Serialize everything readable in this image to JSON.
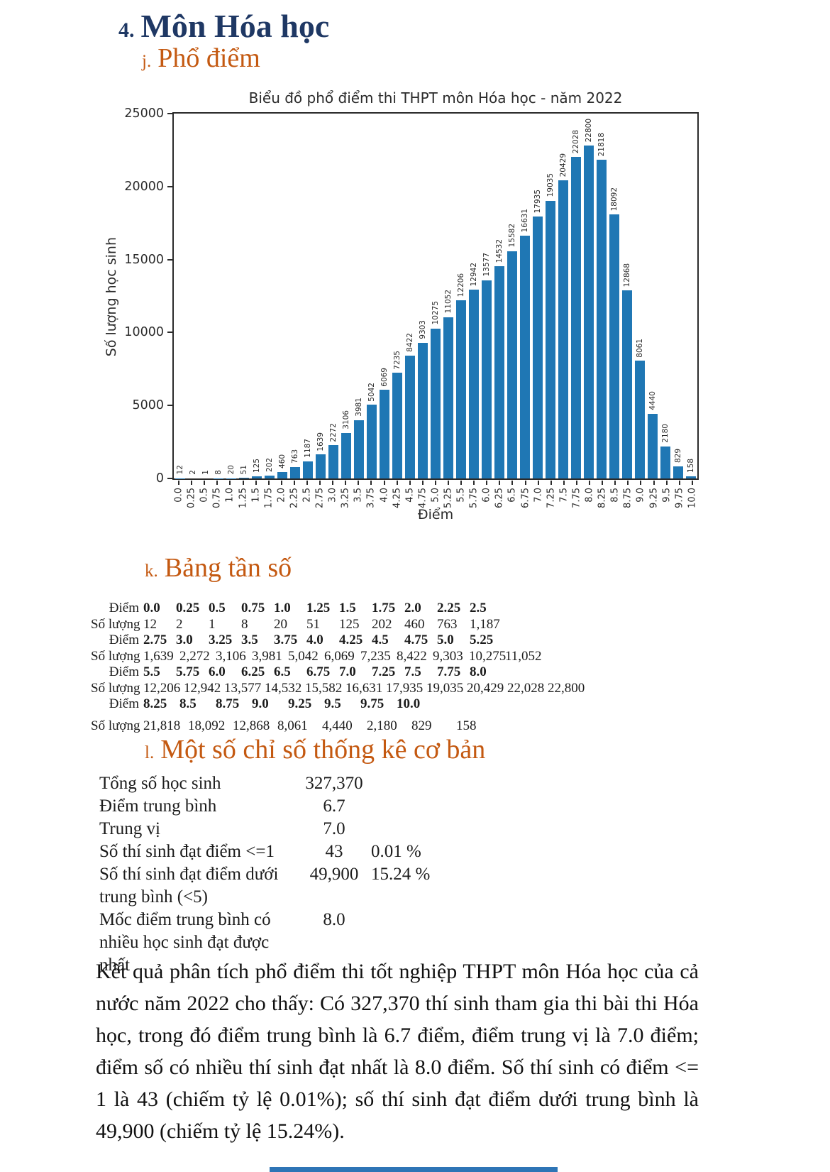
{
  "headings": {
    "main": {
      "num": "4.",
      "text": "Môn Hóa học"
    },
    "j": {
      "num": "j.",
      "text": "Phổ điểm"
    },
    "k": {
      "num": "k.",
      "text": "Bảng tần số"
    },
    "l": {
      "num": "l.",
      "text": "Một số chỉ số thống kê cơ bản"
    }
  },
  "chart_data": {
    "type": "bar",
    "title": "Biểu đồ phổ điểm thi THPT môn Hóa học - năm 2022",
    "xlabel": "Điểm",
    "ylabel": "Số lượng học sinh",
    "ylim": [
      0,
      25000
    ],
    "yticks": [
      0,
      5000,
      10000,
      15000,
      20000,
      25000
    ],
    "grid": false,
    "legend": "none",
    "bar_color": "#1f77b4",
    "bar_label_rotation": 90,
    "categories": [
      "0.0",
      "0.25",
      "0.5",
      "0.75",
      "1.0",
      "1.25",
      "1.5",
      "1.75",
      "2.0",
      "2.25",
      "2.5",
      "2.75",
      "3.0",
      "3.25",
      "3.5",
      "3.75",
      "4.0",
      "4.25",
      "4.5",
      "4.75",
      "5.0",
      "5.25",
      "5.5",
      "5.75",
      "6.0",
      "6.25",
      "6.5",
      "6.75",
      "7.0",
      "7.25",
      "7.5",
      "7.75",
      "8.0",
      "8.25",
      "8.5",
      "8.75",
      "9.0",
      "9.25",
      "9.5",
      "9.75",
      "10.0"
    ],
    "values": [
      12,
      2,
      1,
      8,
      20,
      51,
      125,
      202,
      460,
      763,
      1187,
      1639,
      2272,
      3106,
      3981,
      5042,
      6069,
      7235,
      8422,
      9303,
      10275,
      11052,
      12206,
      12942,
      13577,
      14532,
      15582,
      16631,
      17935,
      19035,
      20429,
      22028,
      22800,
      21818,
      18092,
      12868,
      8061,
      4440,
      2180,
      829,
      158
    ]
  },
  "freq_table": {
    "rows": [
      {
        "label": "Điểm",
        "bold": true,
        "cells": [
          "0.0",
          "0.25",
          "0.5",
          "0.75",
          "1.0",
          "1.25",
          "1.5",
          "1.75",
          "2.0",
          "2.25",
          "2.5"
        ]
      },
      {
        "label": "Số lượng",
        "bold": false,
        "cells": [
          "12",
          "2",
          "1",
          "8",
          "20",
          "51",
          "125",
          "202",
          "460",
          "763",
          "1,187"
        ]
      },
      {
        "label": "Điểm",
        "bold": true,
        "cells": [
          "2.75",
          "3.0",
          "3.25",
          "3.5",
          "3.75",
          "4.0",
          "4.25",
          "4.5",
          "4.75",
          "5.0",
          "5.25"
        ]
      },
      {
        "label": "Số lượng",
        "bold": false,
        "cells": [
          "1,639",
          "2,272",
          "3,106",
          "3,981",
          "5,042",
          "6,069",
          "7,235",
          "8,422",
          "9,303",
          "10,275",
          "11,052"
        ]
      },
      {
        "label": "Điểm",
        "bold": true,
        "cells": [
          "5.5",
          "5.75",
          "6.0",
          "6.25",
          "6.5",
          "6.75",
          "7.0",
          "7.25",
          "7.5",
          "7.75",
          "8.0"
        ]
      },
      {
        "label": "Số lượng",
        "bold": false,
        "cells": [
          "12,206",
          "12,942",
          "13,577",
          "14,532",
          "15,582",
          "16,631",
          "17,935",
          "19,035",
          "20,429",
          "22,028",
          "22,800"
        ]
      },
      {
        "label": "Điểm",
        "bold": true,
        "cells": [
          "8.25",
          "8.5",
          "8.75",
          "9.0",
          "9.25",
          "9.5",
          "9.75",
          "10.0"
        ]
      },
      {
        "label": "Số lượng",
        "bold": false,
        "cells": [
          "21,818",
          "18,092",
          "12,868",
          "8,061",
          "4,440",
          "2,180",
          "829",
          "158"
        ]
      }
    ]
  },
  "stats": {
    "rows": [
      {
        "label": "Tổng số học sinh",
        "value": "327,370",
        "pct": ""
      },
      {
        "label": "Điểm trung bình",
        "value": "6.7",
        "pct": ""
      },
      {
        "label": "Trung vị",
        "value": "7.0",
        "pct": ""
      },
      {
        "label": "Số thí sinh đạt điểm <=1",
        "value": "43",
        "pct": "0.01 %"
      },
      {
        "label": "Số thí sinh đạt điểm dưới trung bình (<5)",
        "value": "49,900",
        "pct": "15.24 %"
      },
      {
        "label": "Mốc điểm trung bình có nhiều học sinh đạt được nhất",
        "value": "8.0",
        "pct": ""
      }
    ]
  },
  "paragraph": "Kết quả phân tích phổ điểm thi tốt nghiệp THPT môn Hóa học của cả nước năm 2022 cho thấy: Có 327,370 thí sinh tham gia thi bài thi Hóa học, trong đó điểm trung bình là 6.7 điểm, điểm trung vị là 7.0 điểm; điểm số có nhiều thí sinh đạt nhất là 8.0 điểm. Số thí sinh có điểm <= 1 là 43 (chiếm tỷ lệ 0.01%); số thí sinh đạt điểm dưới trung bình là 49,900 (chiếm tỷ lệ 15.24%).",
  "colors": {
    "heading_main": "#1f3864",
    "heading_sub": "#c45911",
    "bar": "#1f77b4",
    "footer_bar": "#2e75b6"
  }
}
